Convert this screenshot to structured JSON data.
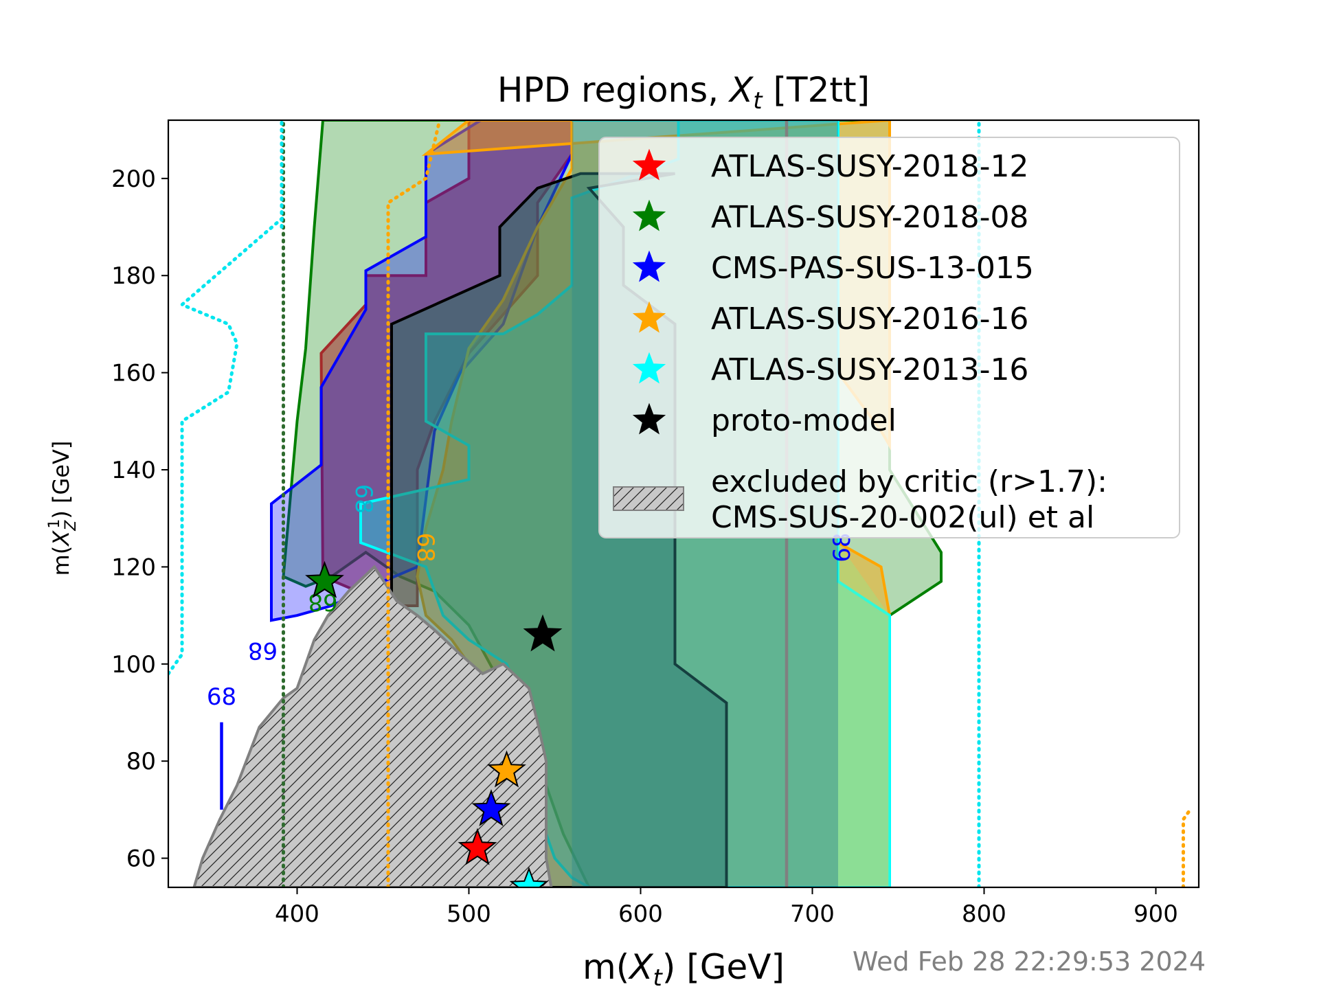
{
  "chart_data": {
    "type": "area",
    "title_prefix": "HPD regions, ",
    "title_var": "X",
    "title_sub": "t",
    "title_suffix": " [T2tt]",
    "xlabel_prefix": "m(",
    "xlabel_var": "X",
    "xlabel_sub": "t",
    "xlabel_suffix": ") [GeV]",
    "ylabel_prefix": "m(",
    "ylabel_var": "X",
    "ylabel_sup": "1",
    "ylabel_sub": "Z",
    "ylabel_suffix": ") [GeV]",
    "xlim": [
      325,
      925
    ],
    "ylim": [
      54,
      212
    ],
    "xticks": [
      400,
      500,
      600,
      700,
      800,
      900
    ],
    "yticks": [
      60,
      80,
      100,
      120,
      140,
      160,
      180,
      200
    ],
    "timestamp": "Wed Feb 28 22:29:53 2024",
    "contour_label": "68",
    "legend": [
      {
        "label": "ATLAS-SUSY-2018-12",
        "color": "#ff0000",
        "marker": "star"
      },
      {
        "label": "ATLAS-SUSY-2018-08",
        "color": "#008000",
        "marker": "star"
      },
      {
        "label": "CMS-PAS-SUS-13-015",
        "color": "#0000ff",
        "marker": "star"
      },
      {
        "label": "ATLAS-SUSY-2016-16",
        "color": "#ffa500",
        "marker": "star"
      },
      {
        "label": "ATLAS-SUSY-2013-16",
        "color": "#00ffff",
        "marker": "star"
      },
      {
        "label": "proto-model",
        "color": "#000000",
        "marker": "star"
      },
      {
        "label_line1": "excluded by critic (r>1.7):",
        "label_line2": "CMS-SUS-20-002(ul) et al",
        "color": "#bdbdbd",
        "marker": "hatch"
      }
    ],
    "stars": [
      {
        "name": "ATLAS-SUSY-2018-12",
        "x": 505,
        "y": 62,
        "color": "#ff0000"
      },
      {
        "name": "ATLAS-SUSY-2018-08",
        "x": 416,
        "y": 117,
        "color": "#008000"
      },
      {
        "name": "CMS-PAS-SUS-13-015",
        "x": 513,
        "y": 70,
        "color": "#0000ff"
      },
      {
        "name": "ATLAS-SUSY-2016-16",
        "x": 522,
        "y": 78,
        "color": "#ffa500"
      },
      {
        "name": "ATLAS-SUSY-2013-16",
        "x": 535,
        "y": 54,
        "color": "#00ffff"
      },
      {
        "name": "proto-model",
        "x": 543,
        "y": 106,
        "color": "#000000"
      }
    ],
    "regions": [
      {
        "name": "ATLAS-SUSY-2018-08",
        "fill": "#008000",
        "opacity": 0.3,
        "stroke": "#008000",
        "points": [
          [
            415,
            212
          ],
          [
            410,
            190
          ],
          [
            405,
            165
          ],
          [
            400,
            150
          ],
          [
            395,
            130
          ],
          [
            392,
            118
          ],
          [
            405,
            116
          ],
          [
            420,
            118
          ],
          [
            440,
            123
          ],
          [
            460,
            118
          ],
          [
            480,
            115
          ],
          [
            500,
            108
          ],
          [
            520,
            95
          ],
          [
            540,
            80
          ],
          [
            555,
            65
          ],
          [
            570,
            54
          ],
          [
            745,
            54
          ],
          [
            745,
            110
          ],
          [
            775,
            117
          ],
          [
            775,
            123
          ],
          [
            745,
            140
          ],
          [
            745,
            212
          ]
        ]
      },
      {
        "name": "ATLAS-SUSY-2018-12",
        "fill": "#a52a2a",
        "opacity": 0.55,
        "stroke": "#a52a2a",
        "points": [
          [
            414,
            164
          ],
          [
            440,
            174
          ],
          [
            440,
            180
          ],
          [
            475,
            180
          ],
          [
            475,
            195
          ],
          [
            500,
            200
          ],
          [
            500,
            212
          ],
          [
            560,
            212
          ],
          [
            560,
            205
          ],
          [
            540,
            195
          ],
          [
            540,
            180
          ],
          [
            520,
            172
          ],
          [
            500,
            164
          ],
          [
            480,
            150
          ],
          [
            470,
            140
          ],
          [
            470,
            118
          ],
          [
            470,
            112
          ],
          [
            455,
            112
          ],
          [
            415,
            118
          ]
        ]
      },
      {
        "name": "CMS-PAS-SUS-13-015",
        "fill": "#0000ff",
        "opacity": 0.3,
        "stroke": "#0000ff",
        "points": [
          [
            385,
            133
          ],
          [
            414,
            141
          ],
          [
            414,
            157
          ],
          [
            440,
            173
          ],
          [
            440,
            181
          ],
          [
            475,
            188
          ],
          [
            475,
            205
          ],
          [
            507,
            212
          ],
          [
            560,
            212
          ],
          [
            560,
            205
          ],
          [
            540,
            190
          ],
          [
            520,
            170
          ],
          [
            495,
            160
          ],
          [
            480,
            148
          ],
          [
            470,
            120
          ],
          [
            450,
            117
          ],
          [
            420,
            112
          ],
          [
            400,
            110
          ],
          [
            385,
            109
          ]
        ]
      },
      {
        "name": "ATLAS-SUSY-2016-16",
        "fill": "#ffa500",
        "opacity": 0.45,
        "stroke": "#ffa500",
        "points": [
          [
            475,
            205
          ],
          [
            500,
            212
          ],
          [
            560,
            212
          ],
          [
            560,
            202
          ],
          [
            540,
            190
          ],
          [
            520,
            175
          ],
          [
            500,
            165
          ],
          [
            490,
            150
          ],
          [
            485,
            140
          ],
          [
            475,
            128
          ],
          [
            470,
            118
          ],
          [
            475,
            110
          ],
          [
            490,
            105
          ],
          [
            500,
            100
          ],
          [
            505,
            90
          ],
          [
            505,
            80
          ],
          [
            500,
            70
          ],
          [
            500,
            60
          ],
          [
            510,
            54
          ],
          [
            745,
            54
          ],
          [
            745,
            110
          ],
          [
            740,
            120
          ],
          [
            715,
            125
          ],
          [
            715,
            160
          ],
          [
            740,
            148
          ],
          [
            745,
            145
          ],
          [
            745,
            212
          ]
        ]
      },
      {
        "name": "ATLAS-SUSY-2013-16",
        "fill": "#00ffff",
        "opacity": 0.35,
        "stroke": "#00ffff",
        "points": [
          [
            560,
            212
          ],
          [
            622,
            212
          ],
          [
            622,
            204
          ],
          [
            560,
            196
          ],
          [
            560,
            178
          ],
          [
            540,
            172
          ],
          [
            520,
            168
          ],
          [
            475,
            168
          ],
          [
            475,
            150
          ],
          [
            500,
            145
          ],
          [
            500,
            138
          ],
          [
            437,
            133
          ],
          [
            437,
            125
          ],
          [
            475,
            120
          ],
          [
            485,
            110
          ],
          [
            500,
            105
          ],
          [
            522,
            100
          ],
          [
            540,
            85
          ],
          [
            545,
            65
          ],
          [
            550,
            60
          ],
          [
            560,
            56
          ],
          [
            570,
            54
          ],
          [
            745,
            54
          ],
          [
            745,
            110
          ],
          [
            715,
            117
          ],
          [
            715,
            212
          ]
        ]
      },
      {
        "name": "proto-model",
        "fill": "#2f6f5f",
        "opacity": 0.55,
        "stroke": "#000000",
        "points": [
          [
            620,
            201
          ],
          [
            565,
            201
          ],
          [
            540,
            198
          ],
          [
            518,
            190
          ],
          [
            518,
            180
          ],
          [
            455,
            170
          ],
          [
            455,
            110
          ],
          [
            475,
            100
          ],
          [
            485,
            95
          ],
          [
            485,
            60
          ],
          [
            500,
            56
          ],
          [
            520,
            54
          ],
          [
            650,
            54
          ],
          [
            650,
            92
          ],
          [
            620,
            100
          ],
          [
            620,
            135
          ],
          [
            620,
            170
          ],
          [
            590,
            178
          ],
          [
            590,
            190
          ],
          [
            570,
            198
          ]
        ]
      },
      {
        "name": "band-teal",
        "fill": "#2e8b8b",
        "opacity": 0.45,
        "stroke": "none",
        "points": [
          [
            560,
            212
          ],
          [
            715,
            212
          ],
          [
            715,
            54
          ],
          [
            560,
            54
          ]
        ]
      },
      {
        "name": "band-green",
        "fill": "#90ee90",
        "opacity": 0.35,
        "stroke": "none",
        "points": [
          [
            715,
            125
          ],
          [
            745,
            110
          ],
          [
            745,
            54
          ],
          [
            715,
            54
          ]
        ]
      }
    ],
    "excluded_region": {
      "points": [
        [
          340,
          54
        ],
        [
          345,
          60
        ],
        [
          355,
          68
        ],
        [
          365,
          75
        ],
        [
          378,
          87
        ],
        [
          392,
          93
        ],
        [
          400,
          95
        ],
        [
          405,
          100
        ],
        [
          410,
          105
        ],
        [
          418,
          110
        ],
        [
          430,
          115
        ],
        [
          445,
          120
        ],
        [
          458,
          113
        ],
        [
          470,
          110
        ],
        [
          480,
          107
        ],
        [
          495,
          102
        ],
        [
          508,
          98
        ],
        [
          520,
          100
        ],
        [
          535,
          95
        ],
        [
          540,
          88
        ],
        [
          545,
          80
        ],
        [
          545,
          70
        ],
        [
          545,
          60
        ],
        [
          548,
          54
        ]
      ]
    },
    "lines": [
      {
        "name": "cyan-dotted-left",
        "color": "#00e5ee",
        "dash": "dotted",
        "points": [
          [
            325,
            98
          ],
          [
            333,
            102
          ],
          [
            333,
            150
          ],
          [
            360,
            156
          ],
          [
            365,
            166
          ],
          [
            360,
            170
          ],
          [
            333,
            174
          ],
          [
            392,
            192
          ]
        ]
      },
      {
        "name": "green-dotted",
        "color": "#2e6b2e",
        "dash": "dotted",
        "points": [
          [
            392,
            54
          ],
          [
            392,
            212
          ]
        ]
      },
      {
        "name": "cyan-dotted-vert",
        "color": "#00e5ee",
        "dash": "dotted",
        "points": [
          [
            391,
            190
          ],
          [
            391,
            212
          ]
        ]
      },
      {
        "name": "orange-dotted-left",
        "color": "#ffa500",
        "dash": "dotted",
        "points": [
          [
            453,
            54
          ],
          [
            453,
            195
          ],
          [
            475,
            200
          ],
          [
            483,
            212
          ]
        ]
      },
      {
        "name": "grey-line",
        "color": "#808080",
        "dash": "solid",
        "points": [
          [
            685,
            54
          ],
          [
            685,
            212
          ]
        ]
      },
      {
        "name": "cyan-dotted-right",
        "color": "#00e5ee",
        "dash": "dotted",
        "points": [
          [
            797,
            54
          ],
          [
            797,
            212
          ]
        ]
      },
      {
        "name": "orange-dotted-right",
        "color": "#ffa500",
        "dash": "dotted",
        "points": [
          [
            916,
            54
          ],
          [
            916,
            68
          ],
          [
            920,
            70
          ]
        ]
      },
      {
        "name": "blue-solid-short",
        "color": "#0000ff",
        "dash": "solid",
        "points": [
          [
            356,
            70
          ],
          [
            356,
            88
          ]
        ]
      }
    ],
    "contour_labels": [
      {
        "x": 356,
        "y": 93,
        "color": "#0000ff",
        "rotate": 0
      },
      {
        "x": 380,
        "y": 103,
        "color": "#0000ff",
        "rotate": 180
      },
      {
        "x": 415,
        "y": 113,
        "color": "#008000",
        "rotate": 180
      },
      {
        "x": 438,
        "y": 134,
        "color": "#00bcd4",
        "rotate": 90
      },
      {
        "x": 474,
        "y": 124,
        "color": "#ffa500",
        "rotate": 90
      },
      {
        "x": 718,
        "y": 124,
        "color": "#0000ff",
        "rotate": 270
      }
    ]
  }
}
